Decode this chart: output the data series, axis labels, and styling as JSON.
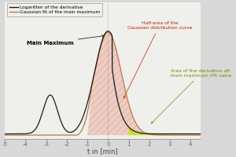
{
  "xlim": [
    -5,
    4.5
  ],
  "ylim": [
    -0.02,
    0.75
  ],
  "xlabel": "t in [min]",
  "bg_color": "#d8d8d8",
  "plot_bg": "#efefeb",
  "curve_color": "#1a1a1a",
  "gaussian_color": "#c07848",
  "red_fill_color": "#cc2200",
  "green_fill_color": "#ccee00",
  "legend_entries": [
    "Logarithm of the derivative",
    "Gaussian fit of the main maximum"
  ],
  "annotation_main": "Main Maximum",
  "annotation_half": "Half-area of the\nGaussian distribution curve",
  "annotation_fr": "Area of the derivative aft\nmain maximum (FR value",
  "gaussian_mu": 0.0,
  "gaussian_sigma": 0.65,
  "xticks": [
    -5,
    -4,
    -3,
    -2,
    -1,
    0,
    1,
    2,
    3,
    4
  ]
}
